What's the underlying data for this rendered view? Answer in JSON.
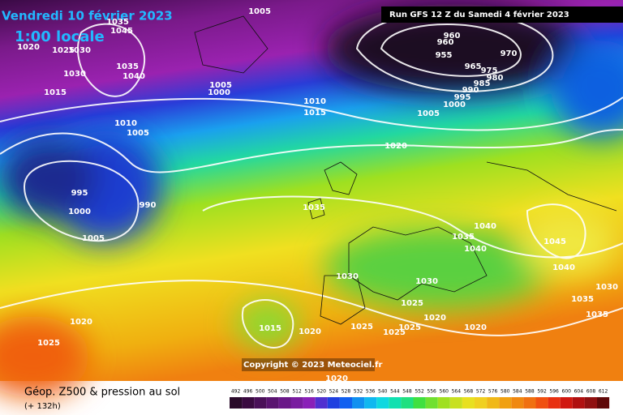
{
  "header": {
    "date": "Vendredi 10 février 2023",
    "time": "1:00 locale",
    "run": "Run GFS 12 Z du Samedi 4 février 2023"
  },
  "copyright": "Copyright © 2023 Meteociel.fr",
  "footer": {
    "title": "Géop. Z500 & pression au sol",
    "lead": "(+ 132h)"
  },
  "colorbar": {
    "ticks": [
      492,
      496,
      500,
      504,
      508,
      512,
      516,
      520,
      524,
      528,
      532,
      536,
      540,
      544,
      548,
      552,
      556,
      560,
      564,
      568,
      572,
      576,
      580,
      584,
      588,
      592,
      596,
      600,
      604,
      608,
      612
    ]
  },
  "isobar_labels": [
    1005,
    1035,
    1045,
    1020,
    1025,
    1030,
    1035,
    1040,
    1030,
    1015,
    1005,
    1000,
    1010,
    1015,
    1010,
    1005,
    960,
    960,
    955,
    965,
    970,
    975,
    980,
    985,
    990,
    995,
    1000,
    1005,
    1020,
    995,
    1000,
    990,
    1005,
    1035,
    1040,
    1035,
    1040,
    1045,
    1040,
    1030,
    1030,
    1025,
    1015,
    1020,
    1025,
    1025,
    1025,
    1020,
    1020,
    1020,
    1025,
    1030,
    1035,
    1035,
    1020
  ]
}
